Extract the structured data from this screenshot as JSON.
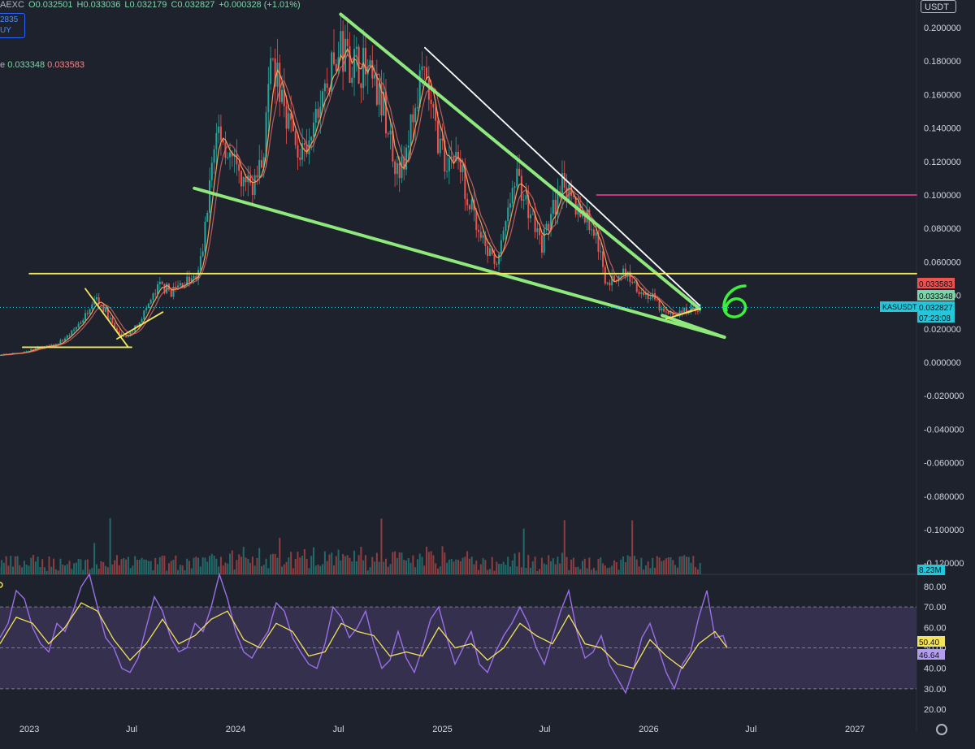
{
  "header": {
    "exchange_fragment": "AEXC",
    "open": "O0.032501",
    "high": "H0.033036",
    "low": "L0.032179",
    "close": "C0.032827",
    "change": "+0.000328 (+1.01%)",
    "sym_line1": "2835",
    "sym_line2": "UY",
    "ma_label": "e",
    "ma1_value": "0.033348",
    "ma2_value": "0.033583",
    "currency": "USDT"
  },
  "colors": {
    "background": "#1e222d",
    "up": "#26a69a",
    "down": "#ef5350",
    "ma_orange": "#f5a05a",
    "ma_red": "#e46a6a",
    "trend_green": "#8ee87c",
    "trend_white": "#ffffff",
    "support_yellow": "#f2ea5a",
    "target_magenta": "#e0338c",
    "rsi_purple": "#9b6fe8",
    "rsi_ma_yellow": "#f2e35a",
    "rsi_band": "#3c3658"
  },
  "chart_data": [
    {
      "type": "candlestick",
      "ylabel": "",
      "ylim": [
        -0.13,
        0.21
      ],
      "y_ticks": [
        "0.200000",
        "0.180000",
        "0.160000",
        "0.140000",
        "0.120000",
        "0.100000",
        "0.080000",
        "0.060000",
        "0.040000",
        "0.020000",
        "0.000000",
        "-0.020000",
        "-0.040000",
        "-0.060000",
        "-0.080000",
        "-0.100000",
        "-0.120000"
      ],
      "x_ticks": [
        "2023",
        "Jul",
        "2024",
        "Jul",
        "2025",
        "Jul",
        "2026",
        "Jul",
        "2027"
      ],
      "price_path": [
        [
          "2022-11-01",
          0.004
        ],
        [
          "2022-12-20",
          0.006
        ],
        [
          "2023-01-20",
          0.009
        ],
        [
          "2023-02-15",
          0.01
        ],
        [
          "2023-03-15",
          0.017
        ],
        [
          "2023-04-10",
          0.028
        ],
        [
          "2023-04-25",
          0.04
        ],
        [
          "2023-05-15",
          0.031
        ],
        [
          "2023-06-05",
          0.018
        ],
        [
          "2023-06-20",
          0.014
        ],
        [
          "2023-07-10",
          0.022
        ],
        [
          "2023-07-30",
          0.034
        ],
        [
          "2023-08-20",
          0.046
        ],
        [
          "2023-09-10",
          0.042
        ],
        [
          "2023-10-01",
          0.048
        ],
        [
          "2023-10-25",
          0.05
        ],
        [
          "2023-11-05",
          0.07
        ],
        [
          "2023-11-20",
          0.12
        ],
        [
          "2023-12-01",
          0.14
        ],
        [
          "2023-12-15",
          0.13
        ],
        [
          "2024-01-05",
          0.11
        ],
        [
          "2024-01-25",
          0.105
        ],
        [
          "2024-02-15",
          0.115
        ],
        [
          "2024-03-05",
          0.175
        ],
        [
          "2024-03-25",
          0.16
        ],
        [
          "2024-04-15",
          0.13
        ],
        [
          "2024-05-05",
          0.12
        ],
        [
          "2024-05-25",
          0.15
        ],
        [
          "2024-06-15",
          0.17
        ],
        [
          "2024-07-05",
          0.185
        ],
        [
          "2024-07-25",
          0.18
        ],
        [
          "2024-08-10",
          0.178
        ],
        [
          "2024-08-30",
          0.165
        ],
        [
          "2024-09-20",
          0.15
        ],
        [
          "2024-10-10",
          0.12
        ],
        [
          "2024-10-25",
          0.115
        ],
        [
          "2024-11-10",
          0.15
        ],
        [
          "2024-11-30",
          0.17
        ],
        [
          "2024-12-15",
          0.145
        ],
        [
          "2025-01-05",
          0.12
        ],
        [
          "2025-01-25",
          0.125
        ],
        [
          "2025-02-15",
          0.1
        ],
        [
          "2025-03-05",
          0.075
        ],
        [
          "2025-03-25",
          0.065
        ],
        [
          "2025-04-10",
          0.06
        ],
        [
          "2025-05-01",
          0.095
        ],
        [
          "2025-05-15",
          0.11
        ],
        [
          "2025-06-05",
          0.09
        ],
        [
          "2025-06-25",
          0.07
        ],
        [
          "2025-07-15",
          0.09
        ],
        [
          "2025-08-01",
          0.105
        ],
        [
          "2025-08-20",
          0.095
        ],
        [
          "2025-09-10",
          0.088
        ],
        [
          "2025-10-01",
          0.075
        ],
        [
          "2025-10-15",
          0.05
        ],
        [
          "2025-10-30",
          0.048
        ],
        [
          "2025-11-15",
          0.055
        ],
        [
          "2025-12-01",
          0.05
        ],
        [
          "2025-12-20",
          0.042
        ],
        [
          "2026-01-10",
          0.038
        ],
        [
          "2026-01-25",
          0.03
        ],
        [
          "2026-02-10",
          0.028
        ],
        [
          "2026-03-01",
          0.03
        ],
        [
          "2026-03-20",
          0.033
        ],
        [
          "2026-04-05",
          0.0328
        ]
      ],
      "annotations": [
        {
          "name": "descending-resistance-green",
          "color": "green",
          "points": [
            [
              "2024-07-05",
              0.208
            ],
            [
              "2026-04-01",
              0.032
            ]
          ]
        },
        {
          "name": "descending-resistance-white",
          "color": "white",
          "points": [
            [
              "2024-12-01",
              0.188
            ],
            [
              "2026-04-01",
              0.034
            ]
          ]
        },
        {
          "name": "descending-support-green",
          "color": "green",
          "points": [
            [
              "2023-10-20",
              0.104
            ],
            [
              "2026-05-15",
              0.015
            ]
          ]
        },
        {
          "name": "lower-trendline-green",
          "color": "green",
          "points": [
            [
              "2026-01-25",
              0.028
            ],
            [
              "2026-05-15",
              0.015
            ]
          ]
        },
        {
          "name": "support-horizontal-yellow",
          "color": "yellow",
          "points": [
            [
              "2023-01-01",
              0.053
            ],
            [
              "2027-04-20",
              0.053
            ]
          ]
        },
        {
          "name": "resistance-horizontal-magenta",
          "color": "magenta",
          "points": [
            [
              "2025-10-01",
              0.1
            ],
            [
              "2027-04-20",
              0.1
            ]
          ]
        },
        {
          "name": "early-base-yellow",
          "color": "yellow",
          "points": [
            [
              "2022-12-20",
              0.009
            ],
            [
              "2023-07-01",
              0.009
            ]
          ]
        },
        {
          "name": "triangle-upper-yellow",
          "color": "yellow",
          "points": [
            [
              "2023-04-10",
              0.044
            ],
            [
              "2023-06-25",
              0.009
            ]
          ]
        },
        {
          "name": "triangle-lower-yellow",
          "color": "yellow",
          "points": [
            [
              "2023-06-05",
              0.014
            ],
            [
              "2023-08-25",
              0.03
            ]
          ]
        },
        {
          "name": "recent-base-yellow",
          "color": "yellow",
          "points": [
            [
              "2026-02-01",
              0.026
            ],
            [
              "2026-04-01",
              0.032
            ]
          ]
        }
      ],
      "price_labels": [
        {
          "text": "0.033583",
          "color": "#ef5350"
        },
        {
          "text": "0.033348",
          "color": "#7fd3a8"
        },
        {
          "text": "0.032827",
          "color": "#26c6da"
        },
        {
          "text": "07:23:08",
          "color": "#26c6da"
        }
      ],
      "symbol_tag": "KASUSDT",
      "volume_tag": "8.23M"
    },
    {
      "type": "line",
      "name": "rsi-pane",
      "ylim": [
        18,
        85
      ],
      "y_ticks": [
        "80.00",
        "70.00",
        "60.00",
        "50.00",
        "40.00",
        "30.00",
        "20.00"
      ],
      "band": [
        30,
        70
      ],
      "midline": 50,
      "series": [
        {
          "values": [
            [
              0,
              55
            ],
            [
              10,
              62
            ],
            [
              20,
              78
            ],
            [
              30,
              74
            ],
            [
              40,
              60
            ],
            [
              50,
              52
            ],
            [
              60,
              48
            ],
            [
              70,
              62
            ],
            [
              80,
              58
            ],
            [
              90,
              68
            ],
            [
              100,
              80
            ],
            [
              110,
              86
            ],
            [
              120,
              70
            ],
            [
              130,
              55
            ],
            [
              140,
              50
            ],
            [
              150,
              40
            ],
            [
              160,
              38
            ],
            [
              170,
              45
            ],
            [
              180,
              60
            ],
            [
              190,
              75
            ],
            [
              200,
              68
            ],
            [
              210,
              55
            ],
            [
              220,
              48
            ],
            [
              230,
              50
            ],
            [
              240,
              62
            ],
            [
              250,
              58
            ],
            [
              260,
              70
            ],
            [
              270,
              86
            ],
            [
              280,
              74
            ],
            [
              290,
              58
            ],
            [
              300,
              48
            ],
            [
              310,
              45
            ],
            [
              320,
              52
            ],
            [
              330,
              58
            ],
            [
              340,
              72
            ],
            [
              350,
              68
            ],
            [
              360,
              55
            ],
            [
              370,
              48
            ],
            [
              380,
              42
            ],
            [
              390,
              40
            ],
            [
              400,
              52
            ],
            [
              410,
              70
            ],
            [
              420,
              65
            ],
            [
              430,
              55
            ],
            [
              440,
              60
            ],
            [
              450,
              68
            ],
            [
              460,
              52
            ],
            [
              470,
              40
            ],
            [
              480,
              44
            ],
            [
              490,
              58
            ],
            [
              500,
              45
            ],
            [
              510,
              38
            ],
            [
              520,
              50
            ],
            [
              530,
              64
            ],
            [
              540,
              70
            ],
            [
              550,
              55
            ],
            [
              560,
              42
            ],
            [
              570,
              50
            ],
            [
              580,
              58
            ],
            [
              590,
              42
            ],
            [
              600,
              38
            ],
            [
              610,
              48
            ],
            [
              620,
              56
            ],
            [
              630,
              62
            ],
            [
              640,
              70
            ],
            [
              650,
              62
            ],
            [
              660,
              50
            ],
            [
              670,
              42
            ],
            [
              680,
              55
            ],
            [
              690,
              68
            ],
            [
              700,
              78
            ],
            [
              710,
              58
            ],
            [
              720,
              45
            ],
            [
              730,
              48
            ],
            [
              740,
              56
            ],
            [
              750,
              42
            ],
            [
              760,
              35
            ],
            [
              770,
              28
            ],
            [
              780,
              40
            ],
            [
              790,
              55
            ],
            [
              800,
              62
            ],
            [
              810,
              50
            ],
            [
              820,
              38
            ],
            [
              830,
              30
            ],
            [
              840,
              42
            ],
            [
              850,
              48
            ],
            [
              860,
              65
            ],
            [
              870,
              78
            ],
            [
              880,
              55
            ],
            [
              890,
              56
            ],
            [
              895,
              50
            ]
          ]
        },
        {
          "values": [
            [
              0,
              52
            ],
            [
              20,
              65
            ],
            [
              40,
              62
            ],
            [
              60,
              52
            ],
            [
              80,
              60
            ],
            [
              100,
              72
            ],
            [
              120,
              68
            ],
            [
              140,
              54
            ],
            [
              160,
              44
            ],
            [
              180,
              52
            ],
            [
              200,
              64
            ],
            [
              220,
              52
            ],
            [
              240,
              56
            ],
            [
              260,
              64
            ],
            [
              280,
              68
            ],
            [
              300,
              54
            ],
            [
              320,
              50
            ],
            [
              340,
              62
            ],
            [
              360,
              58
            ],
            [
              380,
              46
            ],
            [
              400,
              48
            ],
            [
              420,
              62
            ],
            [
              440,
              58
            ],
            [
              460,
              56
            ],
            [
              480,
              46
            ],
            [
              500,
              48
            ],
            [
              520,
              46
            ],
            [
              540,
              60
            ],
            [
              560,
              50
            ],
            [
              580,
              52
            ],
            [
              600,
              44
            ],
            [
              620,
              50
            ],
            [
              640,
              62
            ],
            [
              660,
              56
            ],
            [
              680,
              52
            ],
            [
              700,
              66
            ],
            [
              720,
              52
            ],
            [
              740,
              50
            ],
            [
              760,
              42
            ],
            [
              780,
              40
            ],
            [
              800,
              54
            ],
            [
              820,
              46
            ],
            [
              840,
              40
            ],
            [
              860,
              52
            ],
            [
              880,
              58
            ],
            [
              895,
              50
            ]
          ]
        }
      ],
      "value_labels": [
        {
          "text": "50.40",
          "color": "#f2e35a"
        },
        {
          "text": "46.64",
          "color": "#b49cf0"
        }
      ]
    }
  ]
}
